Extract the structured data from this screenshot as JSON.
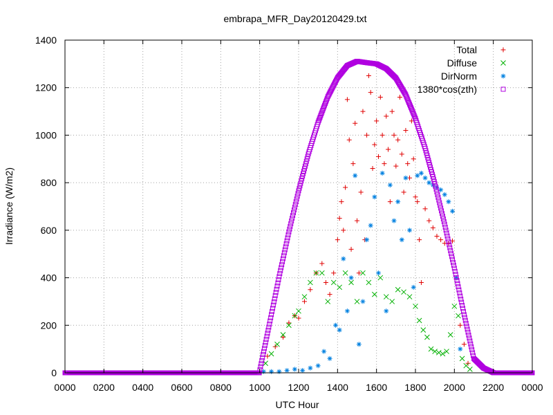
{
  "chart_data": {
    "type": "scatter",
    "title": "embrapa_MFR_Day20120429.txt",
    "xlabel": "UTC Hour",
    "ylabel": "Irradiance (W/m2)",
    "xlim": [
      0,
      24
    ],
    "ylim": [
      0,
      1400
    ],
    "x_ticks": [
      0,
      2,
      4,
      6,
      8,
      10,
      12,
      14,
      16,
      18,
      20,
      22,
      24
    ],
    "x_tick_labels": [
      "0000",
      "0200",
      "0400",
      "0600",
      "0800",
      "1000",
      "1200",
      "1400",
      "1600",
      "1800",
      "2000",
      "2200",
      "0000"
    ],
    "y_ticks": [
      0,
      200,
      400,
      600,
      800,
      1000,
      1200,
      1400
    ],
    "y_tick_labels": [
      "0",
      "200",
      "400",
      "600",
      "800",
      "1000",
      "1200",
      "1400"
    ],
    "grid": true,
    "legend_position": "top-right",
    "series": [
      {
        "name": "Total",
        "color": "#e00000",
        "marker": "plus",
        "x": [
          10.4,
          10.8,
          11.2,
          11.5,
          11.8,
          12.0,
          12.3,
          12.6,
          12.9,
          13.2,
          13.4,
          13.6,
          13.8,
          14.0,
          14.1,
          14.2,
          14.3,
          14.4,
          14.5,
          14.6,
          14.7,
          14.8,
          14.9,
          15.0,
          15.1,
          15.2,
          15.3,
          15.4,
          15.5,
          15.6,
          15.7,
          15.8,
          15.9,
          16.0,
          16.1,
          16.2,
          16.3,
          16.4,
          16.5,
          16.6,
          16.7,
          16.8,
          16.9,
          17.0,
          17.1,
          17.2,
          17.3,
          17.4,
          17.5,
          17.6,
          17.7,
          17.8,
          17.9,
          18.0,
          18.1,
          18.2,
          18.3,
          18.5,
          18.7,
          18.9,
          19.1,
          19.3,
          19.5,
          19.7,
          19.9,
          20.1,
          20.3,
          20.5,
          20.7
        ],
        "y": [
          70,
          110,
          150,
          210,
          240,
          230,
          300,
          350,
          420,
          460,
          380,
          330,
          420,
          560,
          650,
          720,
          600,
          780,
          1150,
          980,
          520,
          880,
          1050,
          640,
          420,
          760,
          1100,
          560,
          1000,
          1250,
          1180,
          860,
          960,
          1060,
          910,
          1160,
          1000,
          880,
          1080,
          940,
          720,
          1100,
          1000,
          870,
          980,
          1160,
          920,
          760,
          1020,
          880,
          820,
          1060,
          900,
          740,
          720,
          560,
          380,
          690,
          640,
          610,
          575,
          560,
          545,
          545,
          555,
          400,
          200,
          120,
          40
        ]
      },
      {
        "name": "Diffuse",
        "color": "#00b000",
        "marker": "x",
        "x": [
          10.3,
          10.6,
          10.9,
          11.2,
          11.5,
          11.8,
          12.0,
          12.3,
          12.6,
          12.9,
          13.2,
          13.5,
          13.8,
          14.1,
          14.4,
          14.7,
          15.0,
          15.3,
          15.6,
          15.9,
          16.2,
          16.5,
          16.8,
          17.1,
          17.4,
          17.7,
          18.0,
          18.2,
          18.4,
          18.6,
          18.8,
          19.0,
          19.2,
          19.4,
          19.6,
          19.8,
          20.0,
          20.2,
          20.4,
          20.6,
          20.8
        ],
        "y": [
          40,
          80,
          120,
          160,
          200,
          240,
          260,
          320,
          380,
          420,
          420,
          300,
          380,
          360,
          420,
          380,
          300,
          420,
          380,
          330,
          400,
          320,
          300,
          350,
          340,
          320,
          280,
          220,
          180,
          150,
          100,
          90,
          85,
          80,
          90,
          160,
          280,
          240,
          60,
          30,
          15
        ]
      },
      {
        "name": "DirNorm",
        "color": "#0080e0",
        "marker": "star",
        "x": [
          10.2,
          10.6,
          11.0,
          11.4,
          11.8,
          12.2,
          12.6,
          13.0,
          13.3,
          13.6,
          13.9,
          14.1,
          14.3,
          14.5,
          14.7,
          14.9,
          15.1,
          15.3,
          15.5,
          15.7,
          15.9,
          16.1,
          16.3,
          16.5,
          16.7,
          16.9,
          17.1,
          17.3,
          17.5,
          17.7,
          17.9,
          18.1,
          18.3,
          18.5,
          18.7,
          18.9,
          19.1,
          19.3,
          19.5,
          19.7,
          19.9,
          20.1,
          20.3
        ],
        "y": [
          5,
          5,
          5,
          10,
          15,
          10,
          20,
          30,
          90,
          60,
          200,
          180,
          480,
          260,
          400,
          830,
          120,
          300,
          560,
          620,
          740,
          420,
          840,
          260,
          790,
          640,
          720,
          560,
          820,
          600,
          360,
          830,
          840,
          820,
          800,
          790,
          780,
          770,
          750,
          720,
          680,
          400,
          100
        ]
      },
      {
        "name": "1380*cos(zth)",
        "color": "#b000e0",
        "marker": "square",
        "x": [
          0,
          1,
          2,
          3,
          4,
          5,
          6,
          7,
          8,
          9,
          9.98,
          10.5,
          11.0,
          11.5,
          12.0,
          12.5,
          13.0,
          13.5,
          14.0,
          14.5,
          15.0,
          15.5,
          16.0,
          16.5,
          17.0,
          17.5,
          18.0,
          18.5,
          19.0,
          19.5,
          20.0,
          20.5,
          21.0,
          21.5,
          22.02,
          23,
          24
        ],
        "y": [
          0,
          0,
          0,
          0,
          0,
          0,
          0,
          0,
          0,
          0,
          0,
          205,
          405,
          593,
          766,
          921,
          1054,
          1162,
          1242,
          1293,
          1311,
          1305,
          1300,
          1280,
          1240,
          1170,
          1070,
          945,
          795,
          625,
          440,
          245,
          60,
          20,
          0,
          0,
          0
        ]
      }
    ]
  }
}
